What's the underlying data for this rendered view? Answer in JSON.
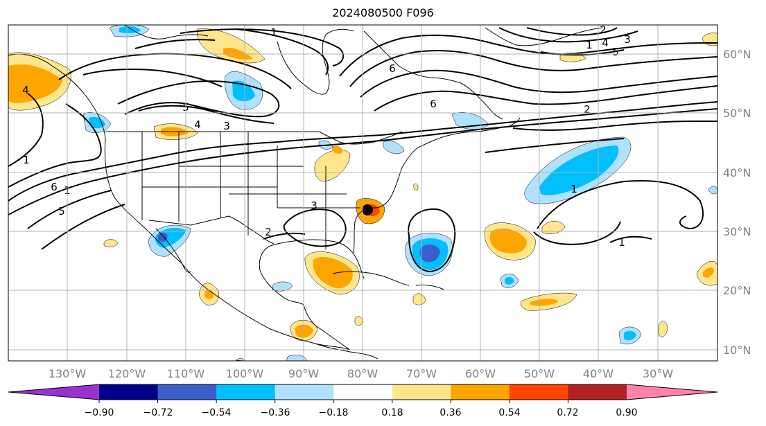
{
  "title": "2024080500 F096",
  "longitude_labels": [
    "130°W",
    "120°W",
    "110°W",
    "100°W",
    "90°W",
    "80°W",
    "70°W",
    "60°W",
    "50°W",
    "40°W",
    "30°W"
  ],
  "latitude_labels": [
    "60°N",
    "50°N",
    "40°N",
    "30°N",
    "20°N",
    "10°N"
  ],
  "colorbar": {
    "tick_labels": [
      "−0.90",
      "−0.72",
      "−0.54",
      "−0.36",
      "−0.18",
      "0.18",
      "0.36",
      "0.54",
      "0.72",
      "0.90"
    ],
    "colors": [
      "#9932cc",
      "#00008b",
      "#3a5fcd",
      "#00bfff",
      "#b0e2ff",
      "#ffffff",
      "#ffe68c",
      "#ffa500",
      "#ff4500",
      "#b22222",
      "#ff82ab"
    ]
  },
  "contour_labels": [
    "1",
    "2",
    "3",
    "4",
    "5",
    "6",
    "6",
    "5",
    "4",
    "3",
    "2",
    "1",
    "1",
    "6",
    "5",
    "4",
    "3",
    "2",
    "1",
    "1",
    "1"
  ],
  "shading_colors": {
    "light_blue": "#b0e2ff",
    "blue": "#00bfff",
    "dark_blue": "#3a5fcd",
    "yellow": "#ffe68c",
    "orange": "#ffa500",
    "red_orange": "#ff4500"
  },
  "tropical_cyclone_marker_color": "#000000"
}
